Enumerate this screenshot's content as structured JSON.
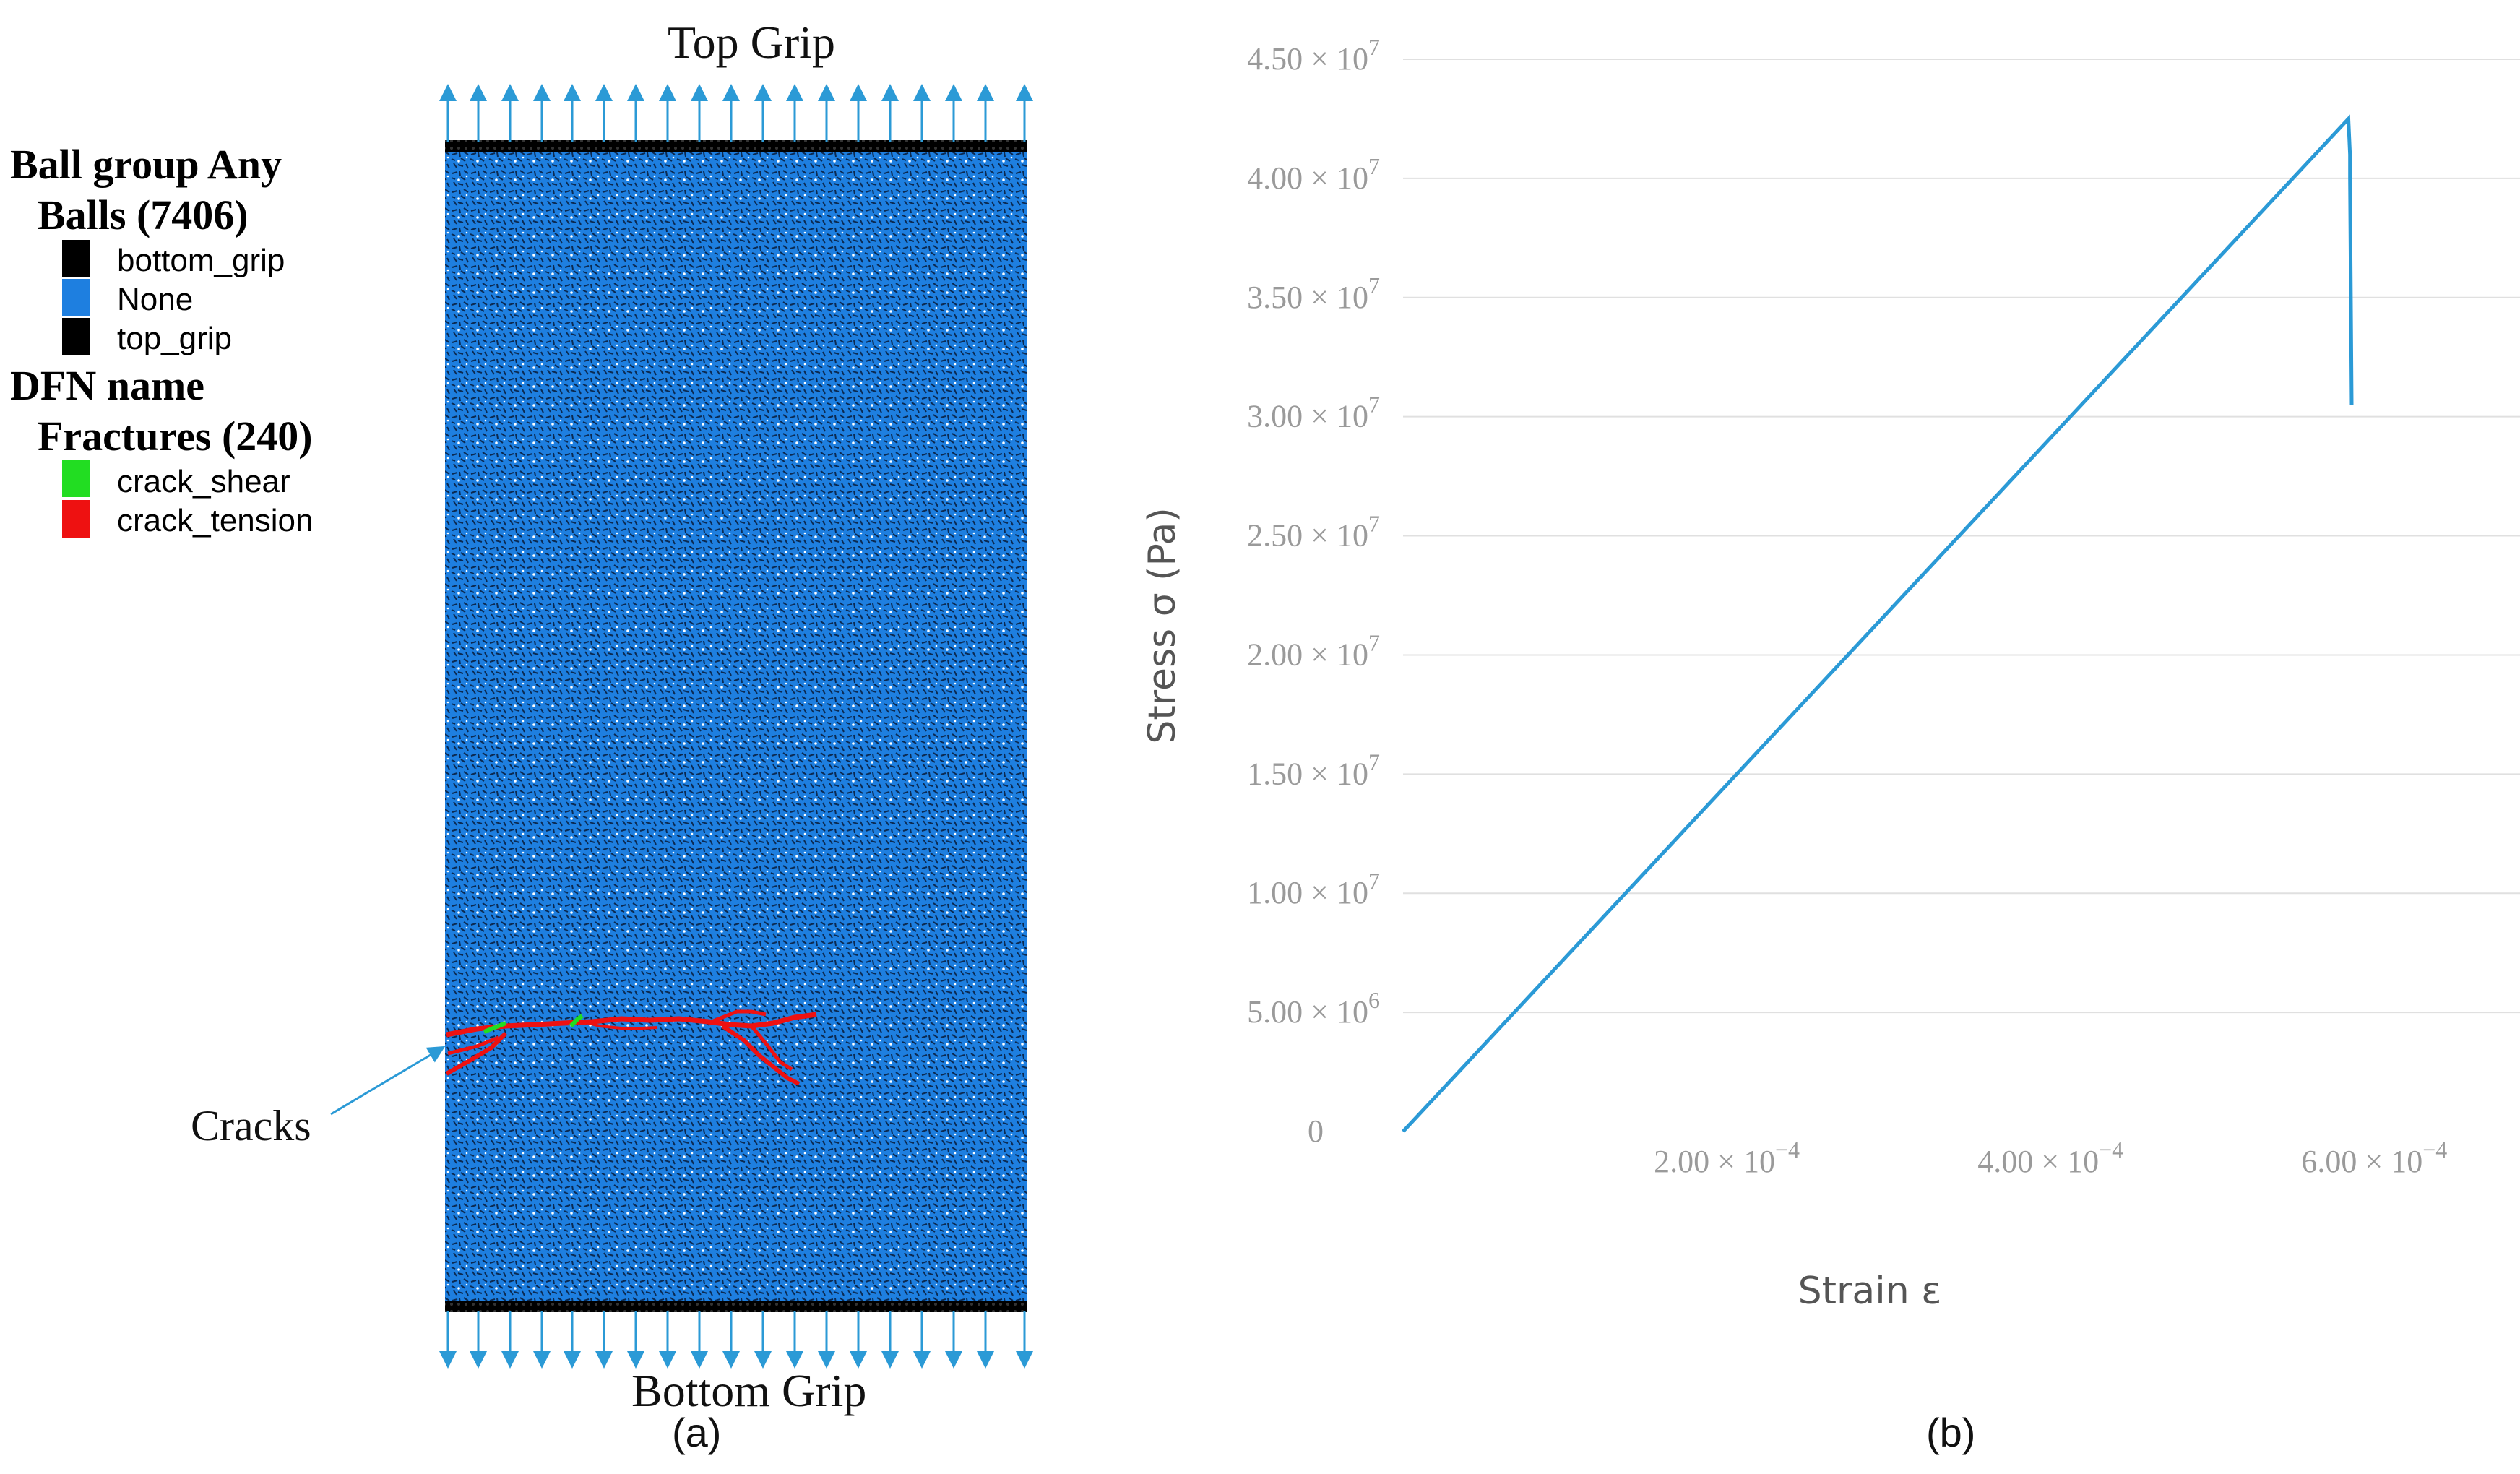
{
  "panel_a": {
    "top_grip_label": "Top Grip",
    "bottom_grip_label": "Bottom Grip",
    "sublabel": "(a)",
    "cracks_label": "Cracks",
    "legend": {
      "ball_group_heading_line1": "Ball group Any",
      "ball_group_heading_line2": "Balls (7406)",
      "ball_items": [
        {
          "label": "bottom_grip",
          "color": "#000000"
        },
        {
          "label": "None",
          "color": "#1e7fe0"
        },
        {
          "label": "top_grip",
          "color": "#000000"
        }
      ],
      "dfn_heading_line1": "DFN name",
      "dfn_heading_line2": "Fractures (240)",
      "dfn_items": [
        {
          "label": "crack_shear",
          "color": "#22dd22"
        },
        {
          "label": "crack_tension",
          "color": "#ee1111"
        }
      ]
    },
    "specimen_color": "#1e7fe0",
    "arrow_color": "#2b9ad6"
  },
  "panel_b": {
    "sublabel": "(b)",
    "chart_data": {
      "type": "line",
      "xlabel": "Strain ε",
      "ylabel": "Stress σ (Pa)",
      "xlim": [
        0,
        0.00069
      ],
      "ylim": [
        0,
        45000000
      ],
      "grid": true,
      "line_color": "#2b9ad6",
      "x_ticks": [
        {
          "value": 0.0002,
          "mant": "2.00 × 10",
          "exp": "−4"
        },
        {
          "value": 0.0004,
          "mant": "4.00 × 10",
          "exp": "−4"
        },
        {
          "value": 0.0006,
          "mant": "6.00 × 10",
          "exp": "−4"
        }
      ],
      "y_ticks": [
        {
          "value": 0,
          "mant": "0",
          "exp": ""
        },
        {
          "value": 5000000,
          "mant": "5.00 × 10",
          "exp": "6"
        },
        {
          "value": 10000000,
          "mant": "1.00 × 10",
          "exp": "7"
        },
        {
          "value": 15000000,
          "mant": "1.50 × 10",
          "exp": "7"
        },
        {
          "value": 20000000,
          "mant": "2.00 × 10",
          "exp": "7"
        },
        {
          "value": 25000000,
          "mant": "2.50 × 10",
          "exp": "7"
        },
        {
          "value": 30000000,
          "mant": "3.00 × 10",
          "exp": "7"
        },
        {
          "value": 35000000,
          "mant": "3.50 × 10",
          "exp": "7"
        },
        {
          "value": 40000000,
          "mant": "4.00 × 10",
          "exp": "7"
        },
        {
          "value": 45000000,
          "mant": "4.50 × 10",
          "exp": "7"
        }
      ],
      "series": [
        {
          "x": [
            0,
            0.000584,
            0.000585,
            0.000585,
            0.000586
          ],
          "y": [
            0,
            42500000,
            41000000,
            40000000,
            30500000
          ]
        }
      ]
    }
  }
}
